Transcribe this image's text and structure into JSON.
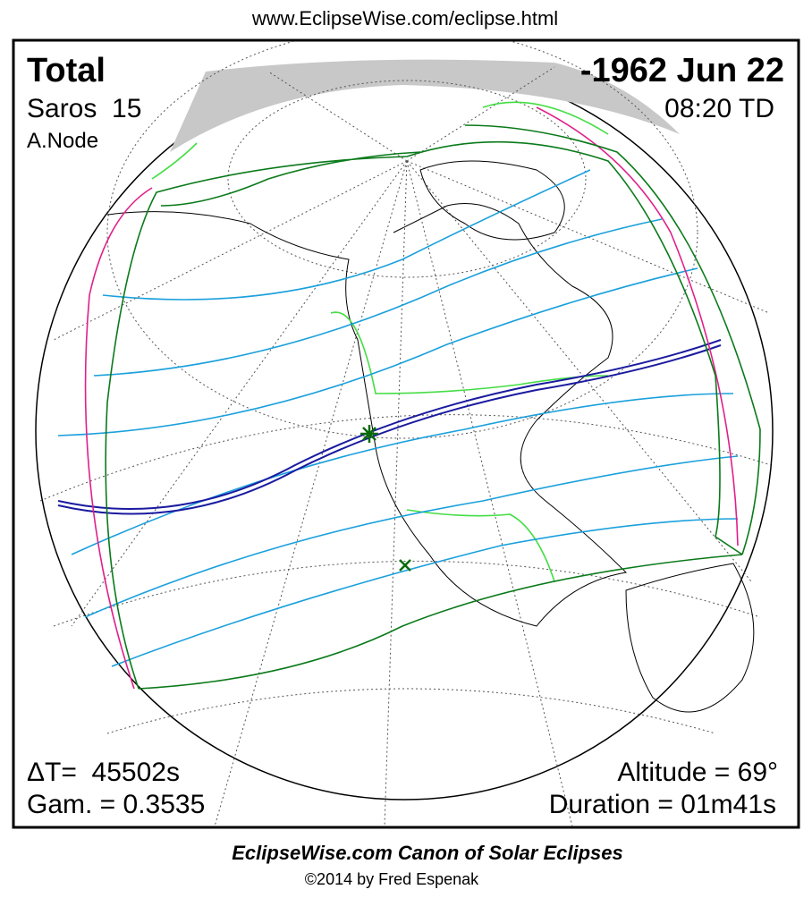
{
  "header": {
    "url": "www.EclipseWise.com/eclipse.html"
  },
  "panel": {
    "eclipse_type": "Total",
    "date": "-1962 Jun 22",
    "saros": "Saros  15",
    "time": "08:20 TD",
    "node": "A.Node",
    "delta_t": "ΔT=  45502s",
    "gamma": "Gam. = 0.3535",
    "altitude": "Altitude = 69°",
    "duration": "Duration = 01m41s"
  },
  "footer": {
    "title": "EclipseWise.com Canon of Solar Eclipses",
    "credit": "©2014 by Fred Espenak"
  }
}
